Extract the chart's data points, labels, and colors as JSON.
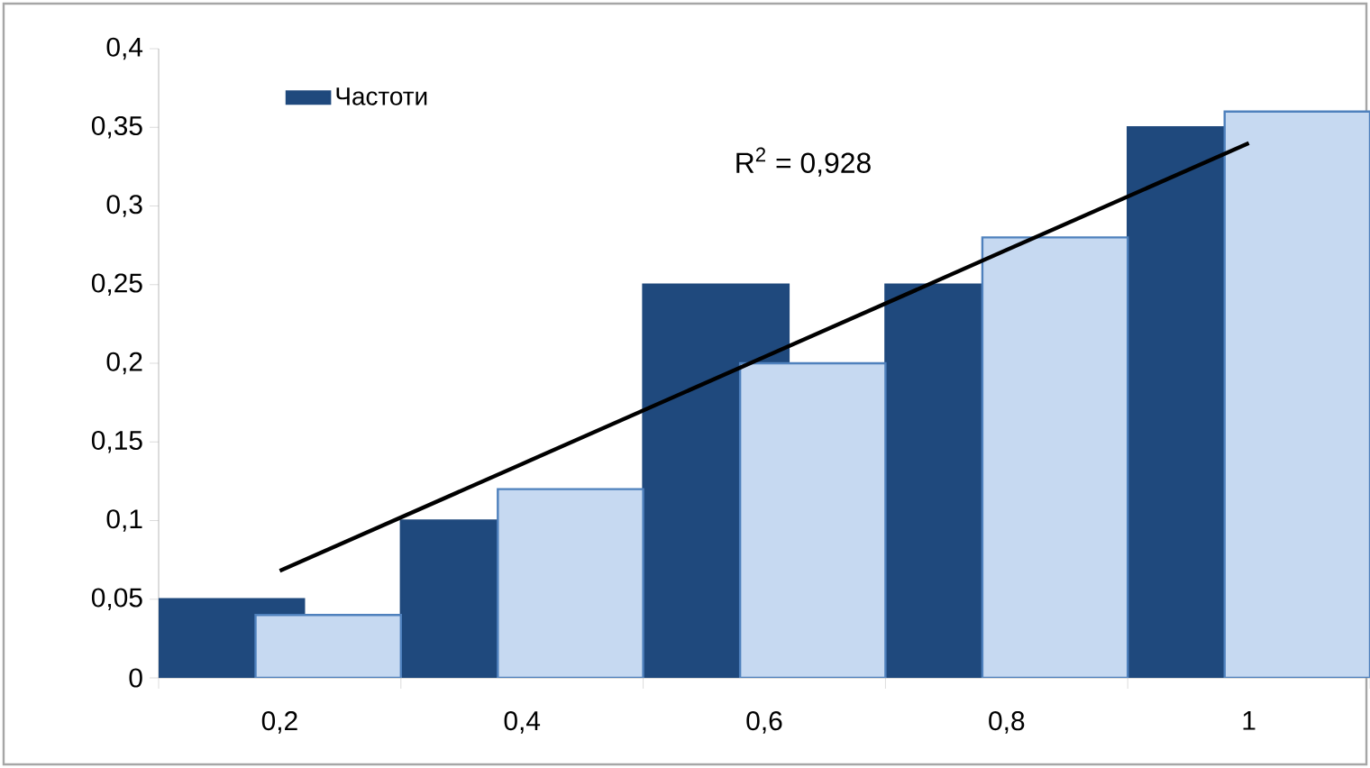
{
  "chart_data": {
    "type": "bar",
    "categories": [
      "0,2",
      "0,4",
      "0,6",
      "0,8",
      "1"
    ],
    "series": [
      {
        "name": "Частоти",
        "color": "#1f497d",
        "values": [
          0.05,
          0.1,
          0.25,
          0.25,
          0.35
        ]
      },
      {
        "color": "#c6d9f1",
        "values": [
          0.04,
          0.12,
          0.2,
          0.28,
          0.36
        ]
      },
      {
        "type": "line",
        "color": "#000000",
        "values": [
          0.068,
          0.136,
          0.204,
          0.272,
          0.34
        ]
      }
    ],
    "ylim": [
      0,
      0.4
    ],
    "yticks": [
      0,
      {
        "value": 0.05,
        "label": "0,05"
      },
      {
        "value": 0.1,
        "label": "0,1"
      },
      {
        "value": 0.15,
        "label": "0,15"
      },
      {
        "value": 0.2,
        "label": "0,2"
      },
      {
        "value": 0.25,
        "label": "0,25"
      },
      {
        "value": 0.3,
        "label": "0,3"
      },
      {
        "value": 0.35,
        "label": "0,35"
      },
      {
        "value": 0.4,
        "label": "0,4"
      }
    ],
    "annotations": [
      "R$^{2}$ = 0,928"
    ],
    "legend": "top left",
    "grid": false
  }
}
